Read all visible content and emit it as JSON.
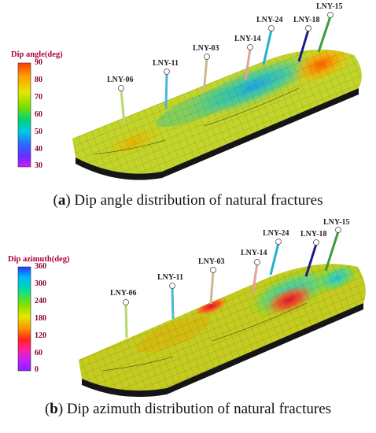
{
  "panels": [
    {
      "id": "a",
      "caption_prefix": "(",
      "caption_letter": "a",
      "caption_text": ") Dip angle distribution of natural fractures",
      "colorbar": {
        "title": "Dip angle(deg)",
        "ticks": [
          "90",
          "80",
          "70",
          "60",
          "50",
          "40",
          "30"
        ],
        "colors": [
          "#ff3a00",
          "#ff9a00",
          "#e6e600",
          "#7be000",
          "#00d27a",
          "#00c8e6",
          "#2a6cff",
          "#6a2bff",
          "#d21eff"
        ]
      },
      "wells": [
        {
          "name": "LNY-06",
          "color": "#b8d86a"
        },
        {
          "name": "LNY-11",
          "color": "#4ab8d8"
        },
        {
          "name": "LNY-03",
          "color": "#cdb890"
        },
        {
          "name": "LNY-14",
          "color": "#e0a0a0"
        },
        {
          "name": "LNY-24",
          "color": "#22b0d0"
        },
        {
          "name": "LNY-18",
          "color": "#1a1a8c"
        },
        {
          "name": "LNY-15",
          "color": "#3c9c3c"
        }
      ]
    },
    {
      "id": "b",
      "caption_prefix": "(",
      "caption_letter": "b",
      "caption_text": ") Dip azimuth distribution of natural fractures",
      "colorbar": {
        "title": "Dip azimuth(deg)",
        "ticks": [
          "360",
          "300",
          "240",
          "180",
          "120",
          "60",
          "0"
        ],
        "colors": [
          "#1e3cff",
          "#00b8ff",
          "#00e0a0",
          "#80e000",
          "#e6e600",
          "#ff8c00",
          "#ff2020",
          "#ff20a0",
          "#c020ff",
          "#8a20ff"
        ]
      },
      "wells": [
        {
          "name": "LNY-06",
          "color": "#b8d86a"
        },
        {
          "name": "LNY-11",
          "color": "#4ab8d8"
        },
        {
          "name": "LNY-03",
          "color": "#cdb890"
        },
        {
          "name": "LNY-14",
          "color": "#e0a0a0"
        },
        {
          "name": "LNY-24",
          "color": "#22b0d0"
        },
        {
          "name": "LNY-18",
          "color": "#1a1a8c"
        },
        {
          "name": "LNY-15",
          "color": "#3c9c3c"
        }
      ]
    }
  ]
}
